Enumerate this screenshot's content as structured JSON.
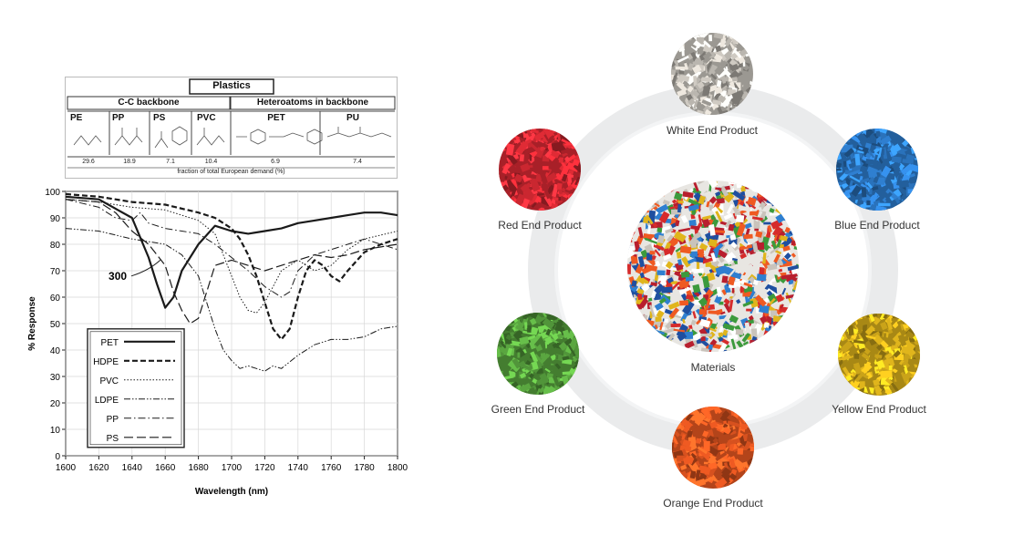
{
  "table": {
    "title": "Plastics",
    "group_cc": "C-C backbone",
    "group_hetero": "Heteroatoms in backbone",
    "polymers": [
      {
        "name": "PE",
        "value": "29.6"
      },
      {
        "name": "PP",
        "value": "18.9"
      },
      {
        "name": "PS",
        "value": "7.1"
      },
      {
        "name": "PVC",
        "value": "10.4"
      },
      {
        "name": "PET",
        "value": "6.9"
      },
      {
        "name": "PU",
        "value": "7.4"
      }
    ],
    "footer": "fraction of total European demand (%)"
  },
  "chart_data": {
    "type": "line",
    "xlabel": "Wavelength (nm)",
    "ylabel": "% Response",
    "xlim": [
      1600,
      1800
    ],
    "ylim": [
      0,
      100
    ],
    "x_ticks": [
      "1600",
      "1620",
      "1640",
      "1660",
      "1680",
      "1700",
      "1720",
      "1740",
      "1760",
      "1780",
      "1800"
    ],
    "y_ticks": [
      "0",
      "10",
      "20",
      "30",
      "40",
      "50",
      "60",
      "70",
      "80",
      "90",
      "100"
    ],
    "annotation": {
      "text": "300",
      "x": 1660,
      "y": 68
    },
    "legend_position": "bottom-left",
    "series": [
      {
        "name": "PET",
        "style": "solid-thick",
        "points": [
          [
            1600,
            98
          ],
          [
            1620,
            97
          ],
          [
            1640,
            90
          ],
          [
            1650,
            75
          ],
          [
            1655,
            65
          ],
          [
            1660,
            56
          ],
          [
            1665,
            60
          ],
          [
            1670,
            70
          ],
          [
            1680,
            80
          ],
          [
            1690,
            87
          ],
          [
            1700,
            85
          ],
          [
            1710,
            84
          ],
          [
            1720,
            85
          ],
          [
            1730,
            86
          ],
          [
            1740,
            88
          ],
          [
            1750,
            89
          ],
          [
            1760,
            90
          ],
          [
            1770,
            91
          ],
          [
            1780,
            92
          ],
          [
            1790,
            92
          ],
          [
            1800,
            91
          ]
        ]
      },
      {
        "name": "HDPE",
        "style": "dashed-thick",
        "points": [
          [
            1600,
            99
          ],
          [
            1620,
            98
          ],
          [
            1640,
            96
          ],
          [
            1660,
            95
          ],
          [
            1680,
            92
          ],
          [
            1690,
            90
          ],
          [
            1700,
            86
          ],
          [
            1705,
            82
          ],
          [
            1710,
            76
          ],
          [
            1715,
            68
          ],
          [
            1720,
            58
          ],
          [
            1725,
            48
          ],
          [
            1730,
            44
          ],
          [
            1735,
            48
          ],
          [
            1740,
            60
          ],
          [
            1745,
            70
          ],
          [
            1750,
            74
          ],
          [
            1755,
            72
          ],
          [
            1760,
            68
          ],
          [
            1765,
            66
          ],
          [
            1770,
            70
          ],
          [
            1780,
            77
          ],
          [
            1790,
            80
          ],
          [
            1800,
            82
          ]
        ]
      },
      {
        "name": "PVC",
        "style": "dotted",
        "points": [
          [
            1600,
            97
          ],
          [
            1620,
            96
          ],
          [
            1640,
            94
          ],
          [
            1660,
            93
          ],
          [
            1680,
            89
          ],
          [
            1690,
            84
          ],
          [
            1695,
            76
          ],
          [
            1700,
            68
          ],
          [
            1705,
            60
          ],
          [
            1710,
            55
          ],
          [
            1715,
            54
          ],
          [
            1720,
            58
          ],
          [
            1725,
            64
          ],
          [
            1730,
            70
          ],
          [
            1740,
            74
          ],
          [
            1750,
            70
          ],
          [
            1760,
            72
          ],
          [
            1770,
            78
          ],
          [
            1780,
            82
          ],
          [
            1800,
            85
          ]
        ]
      },
      {
        "name": "LDPE",
        "style": "dash-dot-dot",
        "points": [
          [
            1600,
            86
          ],
          [
            1620,
            85
          ],
          [
            1640,
            82
          ],
          [
            1660,
            80
          ],
          [
            1670,
            76
          ],
          [
            1680,
            68
          ],
          [
            1685,
            58
          ],
          [
            1690,
            48
          ],
          [
            1695,
            40
          ],
          [
            1700,
            36
          ],
          [
            1705,
            33
          ],
          [
            1710,
            34
          ],
          [
            1715,
            33
          ],
          [
            1720,
            32
          ],
          [
            1725,
            34
          ],
          [
            1730,
            33
          ],
          [
            1740,
            38
          ],
          [
            1750,
            42
          ],
          [
            1760,
            44
          ],
          [
            1770,
            44
          ],
          [
            1780,
            45
          ],
          [
            1790,
            48
          ],
          [
            1800,
            49
          ]
        ]
      },
      {
        "name": "PP",
        "style": "dash-dot",
        "points": [
          [
            1600,
            97
          ],
          [
            1620,
            94
          ],
          [
            1630,
            90
          ],
          [
            1640,
            89
          ],
          [
            1645,
            92
          ],
          [
            1650,
            88
          ],
          [
            1660,
            86
          ],
          [
            1670,
            85
          ],
          [
            1680,
            84
          ],
          [
            1690,
            80
          ],
          [
            1700,
            75
          ],
          [
            1710,
            70
          ],
          [
            1720,
            64
          ],
          [
            1730,
            60
          ],
          [
            1735,
            62
          ],
          [
            1740,
            70
          ],
          [
            1750,
            76
          ],
          [
            1760,
            78
          ],
          [
            1770,
            80
          ],
          [
            1780,
            82
          ],
          [
            1790,
            80
          ],
          [
            1800,
            78
          ]
        ]
      },
      {
        "name": "PS",
        "style": "long-dash",
        "points": [
          [
            1600,
            97
          ],
          [
            1620,
            96
          ],
          [
            1630,
            92
          ],
          [
            1640,
            85
          ],
          [
            1650,
            80
          ],
          [
            1660,
            72
          ],
          [
            1665,
            62
          ],
          [
            1670,
            55
          ],
          [
            1675,
            50
          ],
          [
            1680,
            52
          ],
          [
            1685,
            62
          ],
          [
            1690,
            72
          ],
          [
            1700,
            74
          ],
          [
            1710,
            72
          ],
          [
            1720,
            70
          ],
          [
            1730,
            72
          ],
          [
            1740,
            74
          ],
          [
            1750,
            76
          ],
          [
            1760,
            75
          ],
          [
            1770,
            76
          ],
          [
            1780,
            78
          ],
          [
            1790,
            79
          ],
          [
            1800,
            80
          ]
        ]
      }
    ]
  },
  "diagram": {
    "center_label": "Materials",
    "products": [
      {
        "label": "White End Product",
        "color": "#cfcac2"
      },
      {
        "label": "Blue End Product",
        "color": "#2f7fd0"
      },
      {
        "label": "Yellow End Product",
        "color": "#e0b51c"
      },
      {
        "label": "Orange End Product",
        "color": "#ef5a22"
      },
      {
        "label": "Green End Product",
        "color": "#5aa640"
      },
      {
        "label": "Red End Product",
        "color": "#e02b35"
      }
    ]
  }
}
